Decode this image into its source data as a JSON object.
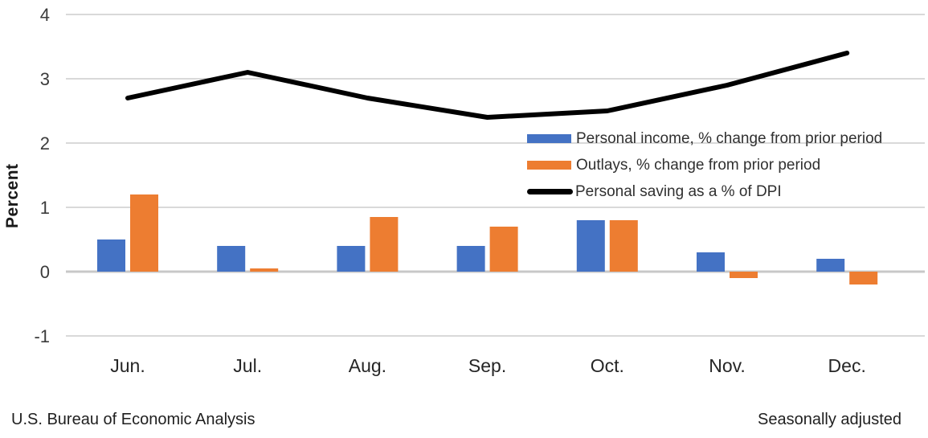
{
  "chart_data": {
    "type": "combo-bar-line",
    "categories": [
      "Jun.",
      "Jul.",
      "Aug.",
      "Sep.",
      "Oct.",
      "Nov.",
      "Dec."
    ],
    "series": [
      {
        "name": "Personal income, % change from prior period",
        "type": "bar",
        "color": "#4472C4",
        "values": [
          0.5,
          0.4,
          0.4,
          0.4,
          0.8,
          0.3,
          0.2
        ]
      },
      {
        "name": "Outlays, % change from prior period",
        "type": "bar",
        "color": "#ED7D31",
        "values": [
          1.2,
          0.05,
          0.85,
          0.7,
          0.8,
          -0.1,
          -0.2
        ]
      },
      {
        "name": "Personal saving as a % of DPI",
        "type": "line",
        "color": "#000000",
        "values": [
          2.7,
          3.1,
          2.7,
          2.4,
          2.5,
          2.9,
          3.4
        ]
      }
    ],
    "title": "",
    "xlabel": "",
    "ylabel": "Percent",
    "yticks": [
      4,
      3,
      2,
      1,
      0,
      -1
    ],
    "ylim": [
      -1.35,
      4.25
    ],
    "grid": true,
    "legend_position": "inside-middle-right"
  },
  "footer": {
    "left": "U.S. Bureau of Economic Analysis",
    "right": "Seasonally adjusted"
  },
  "style": {
    "gridline_color": "#D9D9D9",
    "zero_line_color": "#C8C8C8",
    "tick_text_color": "#3b3b3b",
    "category_text_color": "#262626",
    "line_width": 6
  }
}
